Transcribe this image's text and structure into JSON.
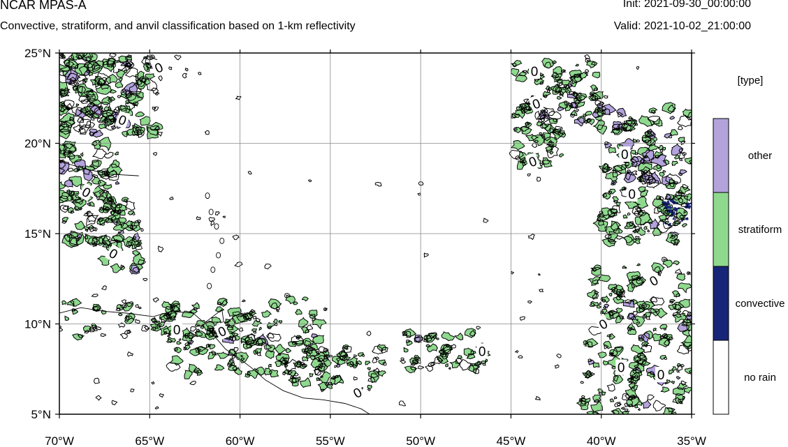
{
  "header": {
    "title": "NCAR MPAS-A",
    "subtitle": "Convective, stratiform, and anvil classification based on 1-km reflectivity",
    "init": "Init: 2021-09-30_00:00:00",
    "valid": "Valid: 2021-10-02_21:00:00"
  },
  "map": {
    "lon_range": [
      -70,
      -35
    ],
    "lat_range": [
      5,
      25
    ],
    "lon_ticks": [
      -70,
      -65,
      -60,
      -55,
      -50,
      -45,
      -40,
      -35
    ],
    "lat_ticks": [
      5,
      10,
      15,
      20,
      25
    ],
    "lon_tick_labels": [
      "70°W",
      "65°W",
      "60°W",
      "55°W",
      "50°W",
      "45°W",
      "40°W",
      "35°W"
    ],
    "lat_tick_labels": [
      "5°N",
      "10°N",
      "15°N",
      "20°N",
      "25°N"
    ],
    "gridlines": true,
    "contour_label": "0"
  },
  "legend": {
    "title": "[type]",
    "items": [
      {
        "label": "other",
        "color": "#b3a3dc"
      },
      {
        "label": "stratiform",
        "color": "#8fd98f"
      },
      {
        "label": "convective",
        "color": "#172578"
      },
      {
        "label": "no rain",
        "color": "#ffffff"
      }
    ]
  },
  "colors": {
    "other": "#b3a3dc",
    "stratiform": "#8fd98f",
    "convective": "#172578",
    "coast": "#000000",
    "grid": "#777777"
  }
}
